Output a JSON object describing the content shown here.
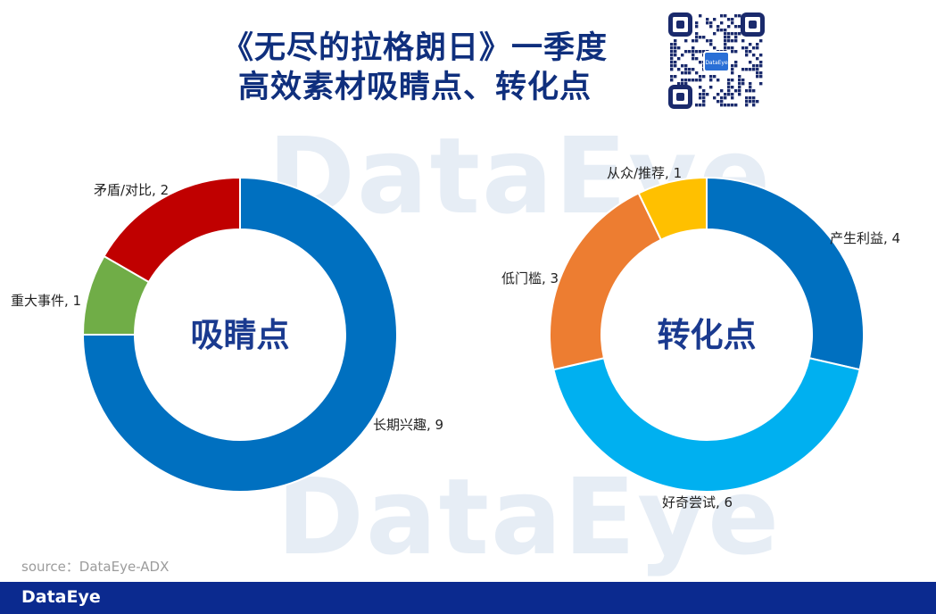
{
  "header": {
    "title_line1": "《无尽的拉格朗日》一季度",
    "title_line2": "高效素材吸睛点、转化点",
    "qr_label": "DataEye"
  },
  "watermark": {
    "text": "DataEye"
  },
  "source": {
    "text": "source：DataEye-ADX"
  },
  "footer": {
    "logo": "DataEye"
  },
  "colors": {
    "blue": "#0070c0",
    "lightblue": "#00b0f0",
    "red": "#c00000",
    "green": "#70ad47",
    "orange": "#ed7d31",
    "yellow": "#ffc000",
    "title": "#0f2f7d",
    "center_label": "#1a3a8f"
  },
  "chart_data": [
    {
      "type": "pie",
      "donut": true,
      "center_label": "吸睛点",
      "slices": [
        {
          "label": "长期兴趣",
          "value": 9,
          "color": "#0070c0"
        },
        {
          "label": "重大事件",
          "value": 1,
          "color": "#70ad47"
        },
        {
          "label": "矛盾/对比",
          "value": 2,
          "color": "#c00000"
        }
      ]
    },
    {
      "type": "pie",
      "donut": true,
      "center_label": "转化点",
      "slices": [
        {
          "label": "产生利益",
          "value": 4,
          "color": "#0070c0"
        },
        {
          "label": "好奇尝试",
          "value": 6,
          "color": "#00b0f0"
        },
        {
          "label": "低门槛",
          "value": 3,
          "color": "#ed7d31"
        },
        {
          "label": "从众/推荐",
          "value": 1,
          "color": "#ffc000"
        }
      ]
    }
  ]
}
